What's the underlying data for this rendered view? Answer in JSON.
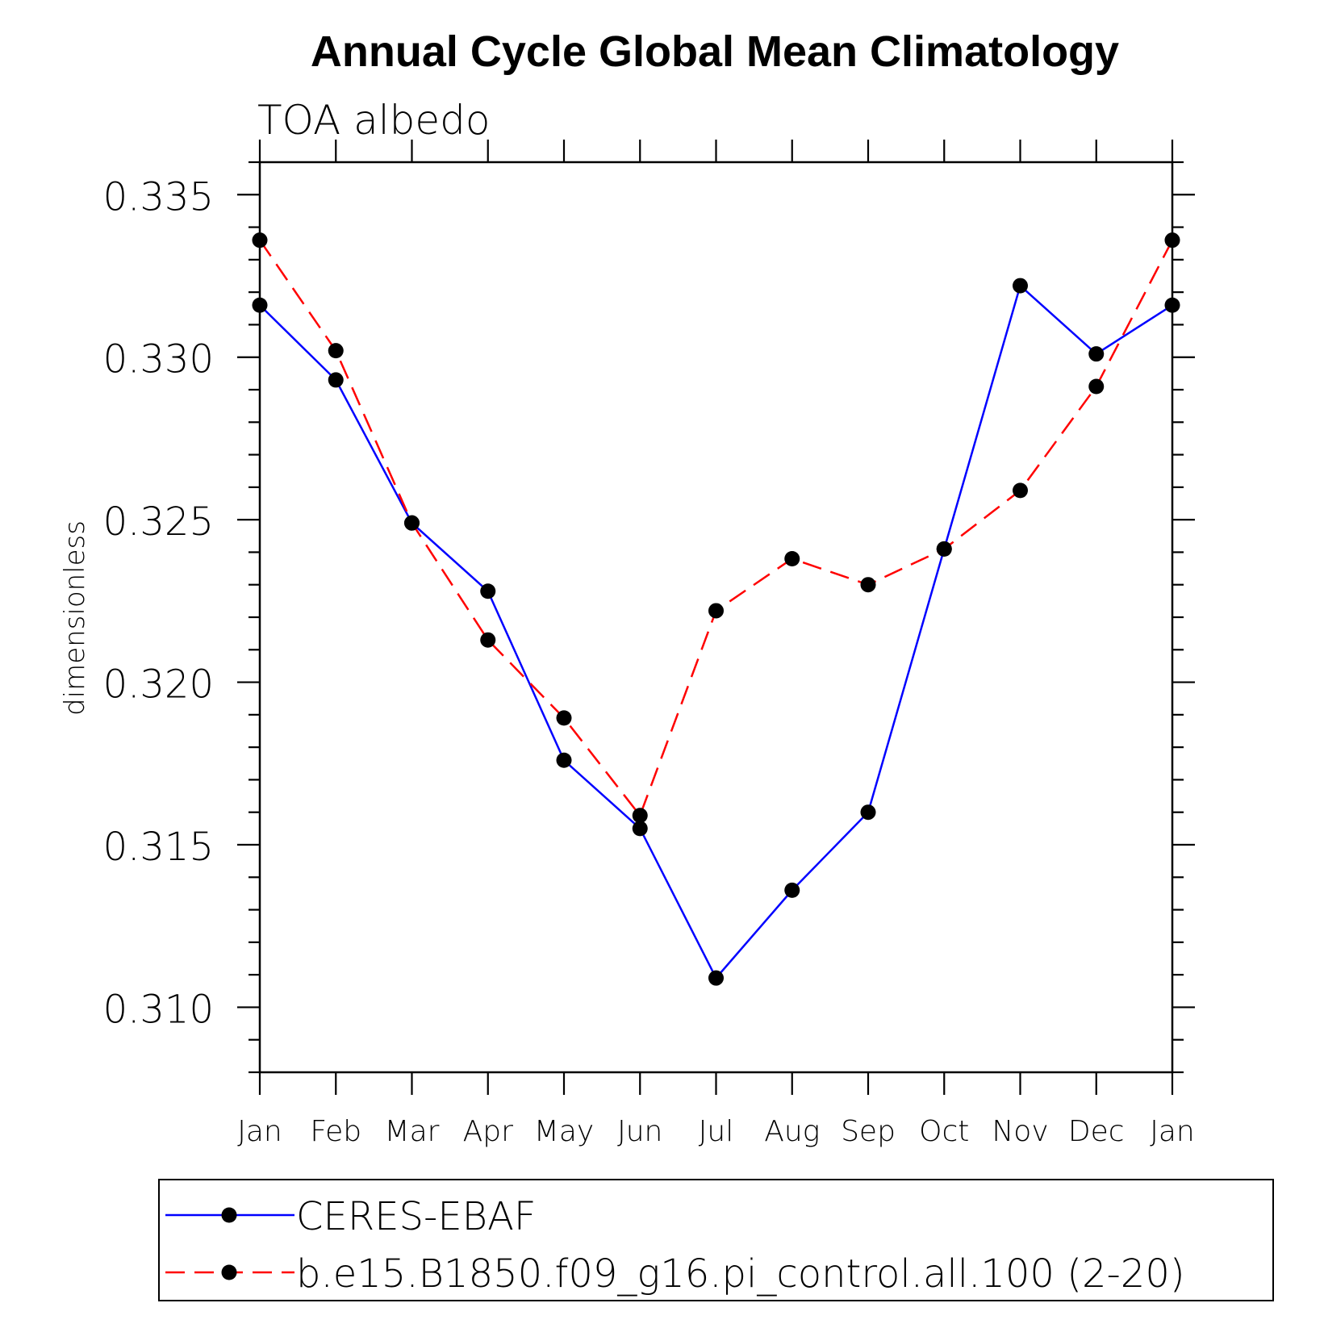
{
  "chart_data": {
    "type": "line",
    "title": "Annual Cycle Global Mean Climatology",
    "subtitle": "TOA albedo",
    "ylabel": "dimensionless",
    "xlabel": "",
    "categories": [
      "Jan",
      "Feb",
      "Mar",
      "Apr",
      "May",
      "Jun",
      "Jul",
      "Aug",
      "Sep",
      "Oct",
      "Nov",
      "Dec",
      "Jan"
    ],
    "ylim": [
      0.308,
      0.336
    ],
    "yticks": [
      "0.310",
      "0.315",
      "0.320",
      "0.325",
      "0.330",
      "0.335"
    ],
    "ytick_values": [
      0.31,
      0.315,
      0.32,
      0.325,
      0.33,
      0.335
    ],
    "legend_position": "bottom",
    "series": [
      {
        "name": "CERES-EBAF",
        "color": "#0000ff",
        "dash": "solid",
        "marker": "circle",
        "values": [
          0.3316,
          0.3293,
          0.3249,
          0.3228,
          0.3176,
          0.3155,
          0.3109,
          0.3136,
          0.316,
          0.3241,
          0.3322,
          0.3301,
          0.3316
        ]
      },
      {
        "name": "b.e15.B1850.f09_g16.pi_control.all.100 (2-20)",
        "color": "#ff0000",
        "dash": "dashed",
        "marker": "circle",
        "values": [
          0.3336,
          0.3302,
          0.3249,
          0.3213,
          0.3189,
          0.3159,
          0.3222,
          0.3238,
          0.323,
          0.3241,
          0.3259,
          0.3291,
          0.3336
        ]
      }
    ]
  }
}
